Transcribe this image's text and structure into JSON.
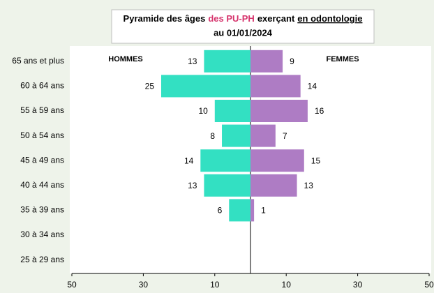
{
  "chart_data": {
    "type": "pyramid",
    "title": [
      "Pyramide des âges",
      "des PU-PH",
      "exerçant",
      "en odontologie"
    ],
    "subtitle": "au 01/01/2024",
    "title_colors": [
      "#000000",
      "#d6336c",
      "#000000",
      "#000000"
    ],
    "categories": [
      "65 ans et plus",
      "60 à 64 ans",
      "55 à 59 ans",
      "50 à 54 ans",
      "45 à 49 ans",
      "40 à 44 ans",
      "35 à 39 ans",
      "30 à 34 ans",
      "25 à 29 ans"
    ],
    "series": [
      {
        "name": "HOMMES",
        "color": "#33e0c2",
        "values": [
          13,
          25,
          10,
          8,
          14,
          13,
          6,
          null,
          null
        ]
      },
      {
        "name": "FEMMES",
        "color": "#ae7cc4",
        "values": [
          9,
          14,
          16,
          7,
          15,
          13,
          1,
          null,
          null
        ]
      }
    ],
    "xlim": [
      0,
      50
    ],
    "xticks": [
      10,
      30,
      50
    ]
  }
}
